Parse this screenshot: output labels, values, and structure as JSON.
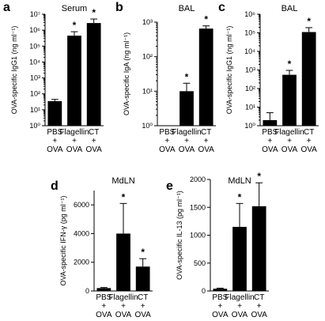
{
  "chart_data": [
    {
      "panel": "a",
      "type": "bar",
      "title": "Serum",
      "ylabel": "OVA-specific IgG1 (ng ml⁻¹)",
      "scale": "log",
      "ylim": [
        1,
        10000000
      ],
      "yticks": [
        {
          "v": 1,
          "label": "10⁰"
        },
        {
          "v": 10,
          "label": "10¹"
        },
        {
          "v": 100,
          "label": "10²"
        },
        {
          "v": 1000,
          "label": "10³"
        },
        {
          "v": 10000,
          "label": "10⁴"
        },
        {
          "v": 100000,
          "label": "10⁵"
        },
        {
          "v": 1000000,
          "label": "10⁶"
        },
        {
          "v": 10000000,
          "label": "10⁷"
        }
      ],
      "categories": [
        [
          "PBS",
          "+",
          "OVA"
        ],
        [
          "Flagellin",
          "+",
          "OVA"
        ],
        [
          "CT",
          "+",
          "OVA"
        ]
      ],
      "values": [
        35,
        450000,
        2800000
      ],
      "errors": [
        10,
        350000,
        2200000
      ],
      "significance": [
        "",
        "*",
        "*"
      ]
    },
    {
      "panel": "b",
      "type": "bar",
      "title": "BAL",
      "ylabel": "OVA-specific IgA (ng ml⁻¹)",
      "scale": "log",
      "ylim": [
        1,
        1000
      ],
      "yticks": [
        {
          "v": 1,
          "label": "10⁰"
        },
        {
          "v": 10,
          "label": "10¹"
        },
        {
          "v": 100,
          "label": "10²"
        },
        {
          "v": 1000,
          "label": "10³"
        }
      ],
      "categories": [
        [
          "PBS",
          "+",
          "OVA"
        ],
        [
          "Flagellin",
          "+",
          "OVA"
        ],
        [
          "CT",
          "+",
          "OVA"
        ]
      ],
      "values": [
        1,
        10,
        650
      ],
      "errors": [
        0,
        7,
        130
      ],
      "significance": [
        "",
        "*",
        "*"
      ]
    },
    {
      "panel": "c",
      "type": "bar",
      "title": "BAL",
      "ylabel": "OVA-specific IgG1 (ng ml⁻¹)",
      "scale": "log",
      "ylim": [
        1,
        1000000
      ],
      "yticks": [
        {
          "v": 1,
          "label": "10⁰"
        },
        {
          "v": 10,
          "label": "10¹"
        },
        {
          "v": 100,
          "label": "10²"
        },
        {
          "v": 1000,
          "label": "10³"
        },
        {
          "v": 10000,
          "label": "10⁴"
        },
        {
          "v": 100000,
          "label": "10⁵"
        },
        {
          "v": 1000000,
          "label": "10⁶"
        }
      ],
      "categories": [
        [
          "PBS",
          "+",
          "OVA"
        ],
        [
          "Flagellin",
          "+",
          "OVA"
        ],
        [
          "CT",
          "+",
          "OVA"
        ]
      ],
      "values": [
        2,
        550,
        110000
      ],
      "errors": [
        3,
        400,
        80000
      ],
      "significance": [
        "",
        "*",
        "*"
      ]
    },
    {
      "panel": "d",
      "type": "bar",
      "title": "MdLN",
      "ylabel": "OVA-specific IFN-γ (pg ml⁻¹)",
      "scale": "linear",
      "ylim": [
        0,
        7000
      ],
      "yticks": [
        {
          "v": 0,
          "label": "0"
        },
        {
          "v": 2000,
          "label": "2000"
        },
        {
          "v": 4000,
          "label": "4000"
        },
        {
          "v": 6000,
          "label": "6000"
        }
      ],
      "categories": [
        [
          "PBS",
          "+",
          "OVA"
        ],
        [
          "Flagellin",
          "+",
          "OVA"
        ],
        [
          "CT",
          "+",
          "OVA"
        ]
      ],
      "values": [
        200,
        4000,
        1700
      ],
      "errors": [
        40,
        2100,
        550
      ],
      "significance": [
        "",
        "*",
        "*"
      ]
    },
    {
      "panel": "e",
      "type": "bar",
      "title": "MdLN",
      "ylabel": "OVA-specific IL-13 (pg ml⁻¹)",
      "scale": "linear",
      "ylim": [
        0,
        2000
      ],
      "yticks": [
        {
          "v": 0,
          "label": "0"
        },
        {
          "v": 500,
          "label": "500"
        },
        {
          "v": 1000,
          "label": "1000"
        },
        {
          "v": 1500,
          "label": "1500"
        },
        {
          "v": 2000,
          "label": "2000"
        }
      ],
      "categories": [
        [
          "PBS",
          "+",
          "OVA"
        ],
        [
          "Flagellin",
          "+",
          "OVA"
        ],
        [
          "CT",
          "+",
          "OVA"
        ]
      ],
      "values": [
        40,
        1150,
        1520
      ],
      "errors": [
        10,
        420,
        420
      ],
      "significance": [
        "",
        "*",
        "*"
      ]
    }
  ]
}
